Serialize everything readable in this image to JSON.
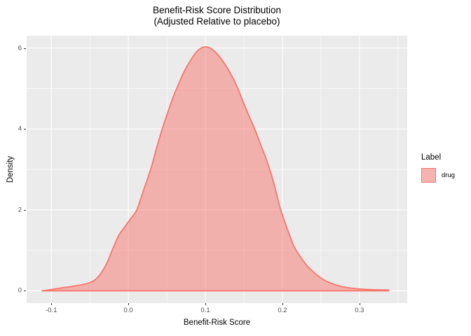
{
  "title": {
    "line1": "Benefit-Risk Score Distribution",
    "line2": "(Adjusted Relative to placebo)"
  },
  "axes": {
    "x": {
      "label": "Benefit-Risk Score",
      "tick_labels": [
        "-0.1",
        "0.0",
        "0.1",
        "0.2",
        "0.3"
      ],
      "tick_values": [
        -0.1,
        0.0,
        0.1,
        0.2,
        0.3
      ],
      "minor_values": [
        -0.05,
        0.05,
        0.15,
        0.25,
        0.35
      ]
    },
    "y": {
      "label": "Density",
      "tick_labels": [
        "0",
        "2",
        "4",
        "6"
      ],
      "tick_values": [
        0,
        2,
        4,
        6
      ],
      "minor_values": [
        1,
        3,
        5
      ]
    }
  },
  "legend": {
    "title": "Label",
    "items": [
      {
        "label": "drug"
      }
    ]
  },
  "colors": {
    "curve_stroke": "#F8766D",
    "curve_fill_rgba": "rgba(248,118,109,0.5)",
    "panel_background": "#EBEBEB",
    "gridline": "#FFFFFF",
    "tick_text": "#4D4D4D",
    "tick_mark": "#333333",
    "text": "#000000",
    "legend_key_background": "#F2F2F2"
  },
  "chart_data": {
    "type": "area",
    "subtype": "density",
    "title": "Benefit-Risk Score Distribution (Adjusted Relative to placebo)",
    "xlabel": "Benefit-Risk Score",
    "ylabel": "Density",
    "legend_position": "right",
    "grid": "on",
    "xlim": [
      -0.132,
      0.362
    ],
    "ylim": [
      -0.304,
      6.305
    ],
    "series": [
      {
        "name": "drug",
        "points": [
          [
            -0.112,
            0.0
          ],
          [
            -0.104,
            0.02
          ],
          [
            -0.094,
            0.05
          ],
          [
            -0.082,
            0.085
          ],
          [
            -0.072,
            0.11
          ],
          [
            -0.062,
            0.145
          ],
          [
            -0.052,
            0.19
          ],
          [
            -0.044,
            0.26
          ],
          [
            -0.036,
            0.42
          ],
          [
            -0.028,
            0.68
          ],
          [
            -0.021,
            1.0
          ],
          [
            -0.013,
            1.35
          ],
          [
            -0.005,
            1.57
          ],
          [
            0.003,
            1.78
          ],
          [
            0.011,
            2.0
          ],
          [
            0.02,
            2.5
          ],
          [
            0.029,
            3.0
          ],
          [
            0.037,
            3.55
          ],
          [
            0.044,
            4.0
          ],
          [
            0.051,
            4.4
          ],
          [
            0.058,
            4.78
          ],
          [
            0.065,
            5.1
          ],
          [
            0.072,
            5.4
          ],
          [
            0.08,
            5.67
          ],
          [
            0.087,
            5.87
          ],
          [
            0.093,
            5.98
          ],
          [
            0.1,
            6.03
          ],
          [
            0.107,
            5.99
          ],
          [
            0.114,
            5.88
          ],
          [
            0.121,
            5.72
          ],
          [
            0.128,
            5.52
          ],
          [
            0.134,
            5.32
          ],
          [
            0.141,
            5.05
          ],
          [
            0.148,
            4.72
          ],
          [
            0.156,
            4.35
          ],
          [
            0.164,
            4.0
          ],
          [
            0.172,
            3.6
          ],
          [
            0.18,
            3.2
          ],
          [
            0.189,
            2.65
          ],
          [
            0.197,
            2.05
          ],
          [
            0.206,
            1.55
          ],
          [
            0.215,
            1.1
          ],
          [
            0.224,
            0.82
          ],
          [
            0.233,
            0.6
          ],
          [
            0.243,
            0.42
          ],
          [
            0.253,
            0.28
          ],
          [
            0.264,
            0.18
          ],
          [
            0.276,
            0.11
          ],
          [
            0.288,
            0.07
          ],
          [
            0.3,
            0.045
          ],
          [
            0.313,
            0.03
          ],
          [
            0.326,
            0.024
          ],
          [
            0.338,
            0.02
          ]
        ]
      }
    ]
  }
}
